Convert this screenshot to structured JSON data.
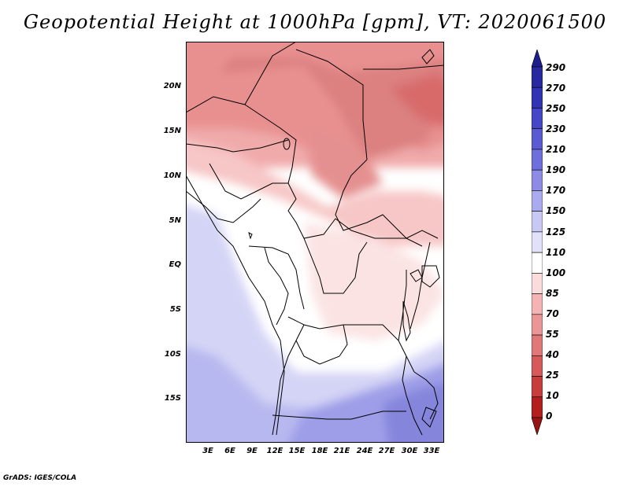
{
  "title": "Geopotential Height at 1000hPa [gpm], VT: 2020061500",
  "footer": "GrADS: IGES/COLA",
  "map": {
    "lat_labels": [
      "20N",
      "15N",
      "10N",
      "5N",
      "EQ",
      "5S",
      "10S",
      "15S"
    ],
    "lat_values": [
      20,
      15,
      10,
      5,
      0,
      -5,
      -10,
      -15
    ],
    "lon_labels": [
      "3E",
      "6E",
      "9E",
      "12E",
      "15E",
      "18E",
      "21E",
      "24E",
      "27E",
      "30E",
      "33E"
    ],
    "lon_values": [
      3,
      6,
      9,
      12,
      15,
      18,
      21,
      24,
      27,
      30,
      33
    ],
    "lat_range": [
      -19.5,
      24.5
    ],
    "lon_range": [
      0.3,
      34.3
    ],
    "variable": "Geopotential Height at 1000hPa",
    "units": "gpm"
  },
  "colorbar": {
    "levels": [
      "290",
      "270",
      "250",
      "230",
      "210",
      "190",
      "170",
      "150",
      "125",
      "110",
      "100",
      "85",
      "70",
      "55",
      "40",
      "25",
      "10",
      "0"
    ],
    "colors": [
      "#1e1e8c",
      "#2828a0",
      "#3232b4",
      "#4646c8",
      "#5a5ad2",
      "#6e6edc",
      "#8c8ce6",
      "#aaaaf0",
      "#c8c8f5",
      "#e1e1fa",
      "#ffffff",
      "#fadcdc",
      "#f5b4b4",
      "#eb9696",
      "#e17878",
      "#d75a5a",
      "#c83c3c",
      "#b41e1e",
      "#961414"
    ]
  }
}
